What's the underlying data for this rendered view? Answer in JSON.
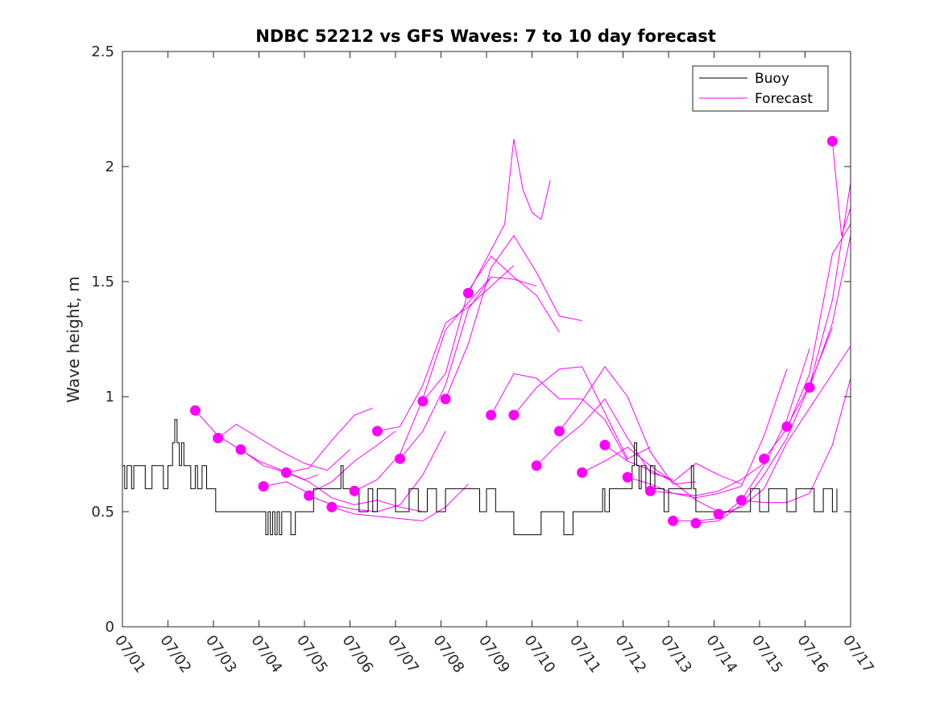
{
  "chart_data": {
    "type": "line",
    "title": "NDBC 52212 vs GFS Waves: 7 to 10 day forecast",
    "xlabel": "",
    "ylabel": "Wave height, m",
    "xlim": [
      0,
      16
    ],
    "ylim": [
      0,
      2.5
    ],
    "x_tick_values": [
      0,
      1,
      2,
      3,
      4,
      5,
      6,
      7,
      8,
      9,
      10,
      11,
      12,
      13,
      14,
      15,
      16
    ],
    "x_tick_labels": [
      "07/01",
      "07/02",
      "07/03",
      "07/04",
      "07/05",
      "07/06",
      "07/07",
      "07/08",
      "07/09",
      "07/10",
      "07/11",
      "07/12",
      "07/13",
      "07/14",
      "07/15",
      "07/16",
      "07/17"
    ],
    "y_tick_values": [
      0,
      0.5,
      1,
      1.5,
      2,
      2.5
    ],
    "y_tick_labels": [
      "0",
      "0.5",
      "1",
      "1.5",
      "2",
      "2.5"
    ],
    "grid": false,
    "legend": {
      "placement": "top-right",
      "entries": [
        "Buoy",
        "Forecast"
      ]
    },
    "colors": {
      "buoy": "#000000",
      "forecast": "#ff00ff"
    },
    "series": [
      {
        "name": "Buoy",
        "x": [
          0,
          0.05,
          0.1,
          0.2,
          0.25,
          0.4,
          0.5,
          0.6,
          0.65,
          0.9,
          1.0,
          1.05,
          1.1,
          1.15,
          1.2,
          1.25,
          1.3,
          1.35,
          1.45,
          1.5,
          1.55,
          1.6,
          1.65,
          1.75,
          1.85,
          1.95,
          2.0,
          2.05,
          2.1,
          2.15,
          2.2,
          2.3,
          2.5,
          2.7,
          2.9,
          3.1,
          3.15,
          3.2,
          3.25,
          3.3,
          3.35,
          3.4,
          3.45,
          3.5,
          3.6,
          3.7,
          3.8,
          4.0,
          4.2,
          4.5,
          4.8,
          4.85,
          5.0,
          5.2,
          5.4,
          5.5,
          5.6,
          5.8,
          6.0,
          6.2,
          6.3,
          6.5,
          6.7,
          6.9,
          7.1,
          7.3,
          7.5,
          7.7,
          7.85,
          8.0,
          8.2,
          8.4,
          8.6,
          8.8,
          9.0,
          9.2,
          9.3,
          9.5,
          9.7,
          9.9,
          10.1,
          10.3,
          10.5,
          10.55,
          10.6,
          10.7,
          10.8,
          10.9,
          11.0,
          11.1,
          11.2,
          11.25,
          11.3,
          11.35,
          11.4,
          11.5,
          11.6,
          11.7,
          11.8,
          11.9,
          12.0,
          12.1,
          12.2,
          12.3,
          12.5,
          12.55,
          12.6,
          12.8,
          12.9,
          13.0,
          13.2,
          13.4,
          13.6,
          13.8,
          14.0,
          14.2,
          14.4,
          14.6,
          14.8,
          15.0,
          15.2,
          15.4,
          15.6,
          15.7
        ],
        "values": [
          0.7,
          0.6,
          0.7,
          0.6,
          0.7,
          0.7,
          0.6,
          0.6,
          0.7,
          0.6,
          0.7,
          0.7,
          0.8,
          0.9,
          0.8,
          0.7,
          0.8,
          0.7,
          0.7,
          0.6,
          0.6,
          0.7,
          0.6,
          0.7,
          0.6,
          0.6,
          0.6,
          0.5,
          0.5,
          0.5,
          0.5,
          0.5,
          0.5,
          0.5,
          0.5,
          0.5,
          0.4,
          0.5,
          0.4,
          0.5,
          0.4,
          0.5,
          0.4,
          0.5,
          0.5,
          0.4,
          0.5,
          0.5,
          0.6,
          0.6,
          0.7,
          0.6,
          0.6,
          0.5,
          0.6,
          0.5,
          0.6,
          0.6,
          0.5,
          0.5,
          0.6,
          0.5,
          0.6,
          0.5,
          0.6,
          0.6,
          0.6,
          0.6,
          0.5,
          0.6,
          0.5,
          0.5,
          0.4,
          0.4,
          0.4,
          0.5,
          0.5,
          0.5,
          0.4,
          0.5,
          0.5,
          0.5,
          0.5,
          0.6,
          0.5,
          0.6,
          0.6,
          0.6,
          0.6,
          0.6,
          0.7,
          0.8,
          0.7,
          0.6,
          0.7,
          0.6,
          0.7,
          0.6,
          0.6,
          0.5,
          0.6,
          0.6,
          0.6,
          0.6,
          0.7,
          0.6,
          0.5,
          0.5,
          0.5,
          0.5,
          0.5,
          0.5,
          0.5,
          0.6,
          0.5,
          0.6,
          0.6,
          0.5,
          0.6,
          0.6,
          0.5,
          0.6,
          0.5,
          0.6
        ]
      },
      {
        "name": "Forecast",
        "lines": [
          {
            "x": [
              1.6,
              2.1,
              2.5,
              3.0,
              3.5,
              4.0,
              4.3
            ],
            "values": [
              0.94,
              0.83,
              0.78,
              0.72,
              0.68,
              0.64,
              0.66
            ]
          },
          {
            "x": [
              2.1,
              2.5,
              3.0,
              3.5,
              4.0,
              4.5,
              5.0
            ],
            "values": [
              0.82,
              0.88,
              0.82,
              0.76,
              0.71,
              0.68,
              0.77
            ]
          },
          {
            "x": [
              2.6,
              3.1,
              3.6,
              4.1,
              4.6,
              5.1,
              5.5
            ],
            "values": [
              0.77,
              0.7,
              0.67,
              0.69,
              0.81,
              0.92,
              0.95
            ]
          },
          {
            "x": [
              3.1,
              3.6,
              4.1,
              4.6,
              5.1,
              5.6,
              6.0
            ],
            "values": [
              0.61,
              0.63,
              0.58,
              0.63,
              0.72,
              0.79,
              0.85
            ]
          },
          {
            "x": [
              3.6,
              4.1,
              4.6,
              5.1,
              5.6,
              6.1,
              6.6
            ],
            "values": [
              0.67,
              0.63,
              0.56,
              0.53,
              0.55,
              0.52,
              0.5
            ]
          },
          {
            "x": [
              4.1,
              4.6,
              5.1,
              5.6,
              6.1,
              6.6,
              7.1
            ],
            "values": [
              0.57,
              0.53,
              0.51,
              0.5,
              0.53,
              0.66,
              0.85
            ]
          },
          {
            "x": [
              4.6,
              5.1,
              5.6,
              6.1,
              6.6,
              7.1,
              7.6
            ],
            "values": [
              0.52,
              0.49,
              0.48,
              0.47,
              0.46,
              0.52,
              0.62
            ]
          },
          {
            "x": [
              5.1,
              5.6,
              6.1,
              6.6,
              7.1,
              7.6,
              8.1
            ],
            "values": [
              0.59,
              0.64,
              0.75,
              0.99,
              1.29,
              1.41,
              1.52
            ]
          },
          {
            "x": [
              5.6,
              6.1,
              6.6,
              7.1,
              7.6,
              8.1,
              8.6
            ],
            "values": [
              0.85,
              0.87,
              1.05,
              1.32,
              1.39,
              1.48,
              1.57
            ]
          },
          {
            "x": [
              6.1,
              6.6,
              7.1,
              7.6,
              8.1,
              8.6,
              9.1
            ],
            "values": [
              0.73,
              0.85,
              1.05,
              1.38,
              1.52,
              1.51,
              1.48
            ]
          },
          {
            "x": [
              6.6,
              7.1,
              7.6,
              8.1,
              8.6,
              9.1,
              9.6
            ],
            "values": [
              0.98,
              1.1,
              1.46,
              1.61,
              1.52,
              1.44,
              1.28
            ]
          },
          {
            "x": [
              7.1,
              7.6,
              8.1,
              8.6,
              9.1,
              9.6,
              10.1
            ],
            "values": [
              0.99,
              1.23,
              1.56,
              1.7,
              1.54,
              1.35,
              1.33
            ]
          },
          {
            "x": [
              7.6,
              8.0,
              8.4,
              8.6,
              8.8,
              9.0,
              9.2,
              9.4
            ],
            "values": [
              1.45,
              1.6,
              1.75,
              2.12,
              1.9,
              1.8,
              1.77,
              1.94
            ]
          },
          {
            "x": [
              8.1,
              8.6,
              9.1,
              9.6,
              10.1,
              10.6,
              11.1
            ],
            "values": [
              0.92,
              1.1,
              1.08,
              0.99,
              0.99,
              0.9,
              0.72
            ]
          },
          {
            "x": [
              8.6,
              9.1,
              9.6,
              10.1,
              10.6,
              11.1,
              11.6
            ],
            "values": [
              0.92,
              1.04,
              1.12,
              1.13,
              0.93,
              0.73,
              0.78
            ]
          },
          {
            "x": [
              9.1,
              9.6,
              10.1,
              10.6,
              11.1,
              11.6,
              12.1
            ],
            "values": [
              0.7,
              0.8,
              0.88,
              0.99,
              0.82,
              0.67,
              0.64
            ]
          },
          {
            "x": [
              9.6,
              10.1,
              10.6,
              11.1,
              11.6,
              12.1,
              12.6
            ],
            "values": [
              0.85,
              0.98,
              1.13,
              1.0,
              0.76,
              0.62,
              0.63
            ]
          },
          {
            "x": [
              10.1,
              10.6,
              11.1,
              11.6,
              12.1,
              12.6,
              13.1
            ],
            "values": [
              0.67,
              0.72,
              0.78,
              0.7,
              0.63,
              0.55,
              0.5
            ]
          },
          {
            "x": [
              10.6,
              11.1,
              11.6,
              12.1,
              12.6,
              13.1,
              13.6
            ],
            "values": [
              0.79,
              0.72,
              0.68,
              0.63,
              0.71,
              0.66,
              0.62
            ]
          },
          {
            "x": [
              11.1,
              11.6,
              12.1,
              12.6,
              13.1,
              13.6,
              14.1
            ],
            "values": [
              0.65,
              0.62,
              0.58,
              0.57,
              0.59,
              0.64,
              0.71
            ]
          },
          {
            "x": [
              11.6,
              12.1,
              12.6,
              13.1,
              13.6,
              14.1,
              14.6
            ],
            "values": [
              0.59,
              0.58,
              0.56,
              0.58,
              0.61,
              0.83,
              1.12
            ]
          },
          {
            "x": [
              12.1,
              12.6,
              13.1,
              13.6,
              14.1,
              14.6,
              15.1
            ],
            "values": [
              0.46,
              0.46,
              0.47,
              0.55,
              0.7,
              0.9,
              1.21
            ]
          },
          {
            "x": [
              12.6,
              13.1,
              13.6,
              14.1,
              14.6,
              15.1,
              15.6
            ],
            "values": [
              0.45,
              0.46,
              0.53,
              0.66,
              0.82,
              1.05,
              1.3
            ]
          },
          {
            "x": [
              13.1,
              13.6,
              14.1,
              14.6,
              15.1,
              15.6,
              16.0
            ],
            "values": [
              0.49,
              0.52,
              0.6,
              0.8,
              0.95,
              1.1,
              1.22
            ]
          },
          {
            "x": [
              13.6,
              14.1,
              14.6,
              15.1,
              15.6,
              16.0
            ],
            "values": [
              0.55,
              0.54,
              0.54,
              0.58,
              0.79,
              1.08
            ]
          },
          {
            "x": [
              14.1,
              14.6,
              15.1,
              15.6,
              16.0
            ],
            "values": [
              0.73,
              0.86,
              1.1,
              1.62,
              1.75
            ]
          },
          {
            "x": [
              14.6,
              15.1,
              15.6,
              16.0
            ],
            "values": [
              0.87,
              1.05,
              1.42,
              1.93
            ]
          },
          {
            "x": [
              15.1,
              15.6,
              16.0
            ],
            "values": [
              1.04,
              1.32,
              1.7
            ]
          },
          {
            "x": [
              15.6,
              15.8,
              16.0
            ],
            "values": [
              2.11,
              1.7,
              1.82
            ]
          }
        ],
        "start_points": {
          "x": [
            1.6,
            2.1,
            2.6,
            3.1,
            3.6,
            4.1,
            4.6,
            5.1,
            5.6,
            6.1,
            6.6,
            7.1,
            7.6,
            8.1,
            8.6,
            9.1,
            9.6,
            10.1,
            10.6,
            11.1,
            11.6,
            12.1,
            12.6,
            13.1,
            13.6,
            14.1,
            14.6,
            15.1,
            15.6
          ],
          "values": [
            0.94,
            0.82,
            0.77,
            0.61,
            0.67,
            0.57,
            0.52,
            0.59,
            0.85,
            0.73,
            0.98,
            0.99,
            1.45,
            0.92,
            0.92,
            0.7,
            0.85,
            0.67,
            0.79,
            0.65,
            0.59,
            0.46,
            0.45,
            0.49,
            0.55,
            0.73,
            0.87,
            1.04,
            2.11
          ]
        }
      }
    ]
  }
}
